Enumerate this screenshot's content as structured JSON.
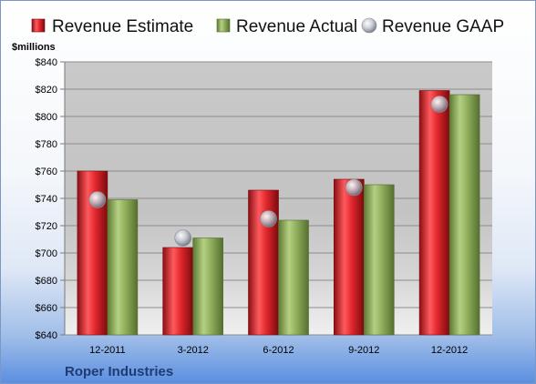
{
  "chart_data": {
    "type": "bar",
    "ylabel": "$millions",
    "company": "Roper Industries",
    "categories": [
      "12-2011",
      "3-2012",
      "6-2012",
      "9-2012",
      "12-2012"
    ],
    "series": [
      {
        "name": "Revenue Estimate",
        "values": [
          760,
          704,
          746,
          754,
          819
        ],
        "color": "#d81e25",
        "kind": "bar"
      },
      {
        "name": "Revenue Actual",
        "values": [
          739,
          711,
          724,
          750,
          816
        ],
        "color": "#8cab5a",
        "kind": "bar"
      },
      {
        "name": "Revenue GAAP",
        "values": [
          739,
          711,
          725,
          748,
          809
        ],
        "color": "#b8bcc4",
        "kind": "marker"
      }
    ],
    "ylim": [
      640,
      840
    ],
    "yticks": [
      "$640",
      "$660",
      "$680",
      "$700",
      "$720",
      "$740",
      "$760",
      "$780",
      "$800",
      "$820",
      "$840"
    ],
    "grid": true,
    "legend_position": "top"
  }
}
